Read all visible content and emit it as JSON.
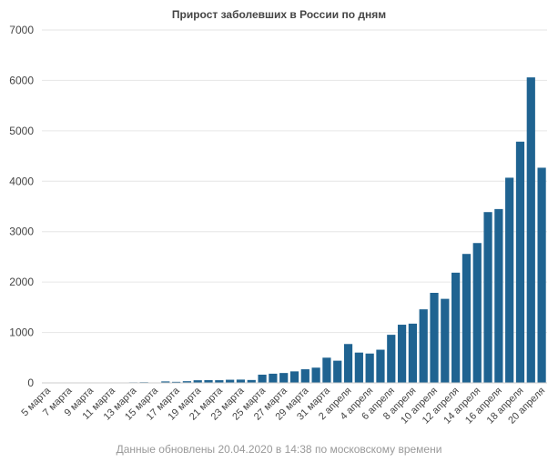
{
  "chart_data": {
    "type": "bar",
    "title": "Прирост заболевших в России по дням",
    "note": "Данные обновлены 20.04.2020 в 14:38 по московскому времени",
    "bar_color": "#1f6391",
    "grid_color": "#e6e6e6",
    "grid": true,
    "ylim": [
      0,
      7000
    ],
    "yticks": [
      0,
      1000,
      2000,
      3000,
      4000,
      5000,
      6000,
      7000
    ],
    "categories": [
      "5 марта",
      "6 марта",
      "7 марта",
      "8 марта",
      "9 марта",
      "10 марта",
      "11 марта",
      "12 марта",
      "13 марта",
      "14 марта",
      "15 марта",
      "16 марта",
      "17 марта",
      "18 марта",
      "19 марта",
      "20 марта",
      "21 марта",
      "22 марта",
      "23 марта",
      "24 марта",
      "25 марта",
      "26 марта",
      "27 марта",
      "28 марта",
      "29 марта",
      "30 марта",
      "31 марта",
      "1 апреля",
      "2 апреля",
      "3 апреля",
      "4 апреля",
      "5 апреля",
      "6 апреля",
      "7 апреля",
      "8 апреля",
      "9 апреля",
      "10 апреля",
      "11 апреля",
      "12 апреля",
      "13 апреля",
      "14 апреля",
      "15 апреля",
      "16 апреля",
      "17 апреля",
      "18 апреля",
      "19 апреля",
      "20 апреля"
    ],
    "values": [
      1,
      1,
      3,
      0,
      3,
      3,
      8,
      6,
      11,
      14,
      4,
      29,
      21,
      33,
      52,
      54,
      53,
      62,
      65,
      57,
      163,
      182,
      196,
      228,
      270,
      302,
      500,
      440,
      771,
      601,
      582,
      658,
      954,
      1154,
      1175,
      1459,
      1786,
      1667,
      2186,
      2558,
      2774,
      3388,
      3448,
      4070,
      4785,
      6060,
      4268
    ],
    "label_every": 2
  }
}
